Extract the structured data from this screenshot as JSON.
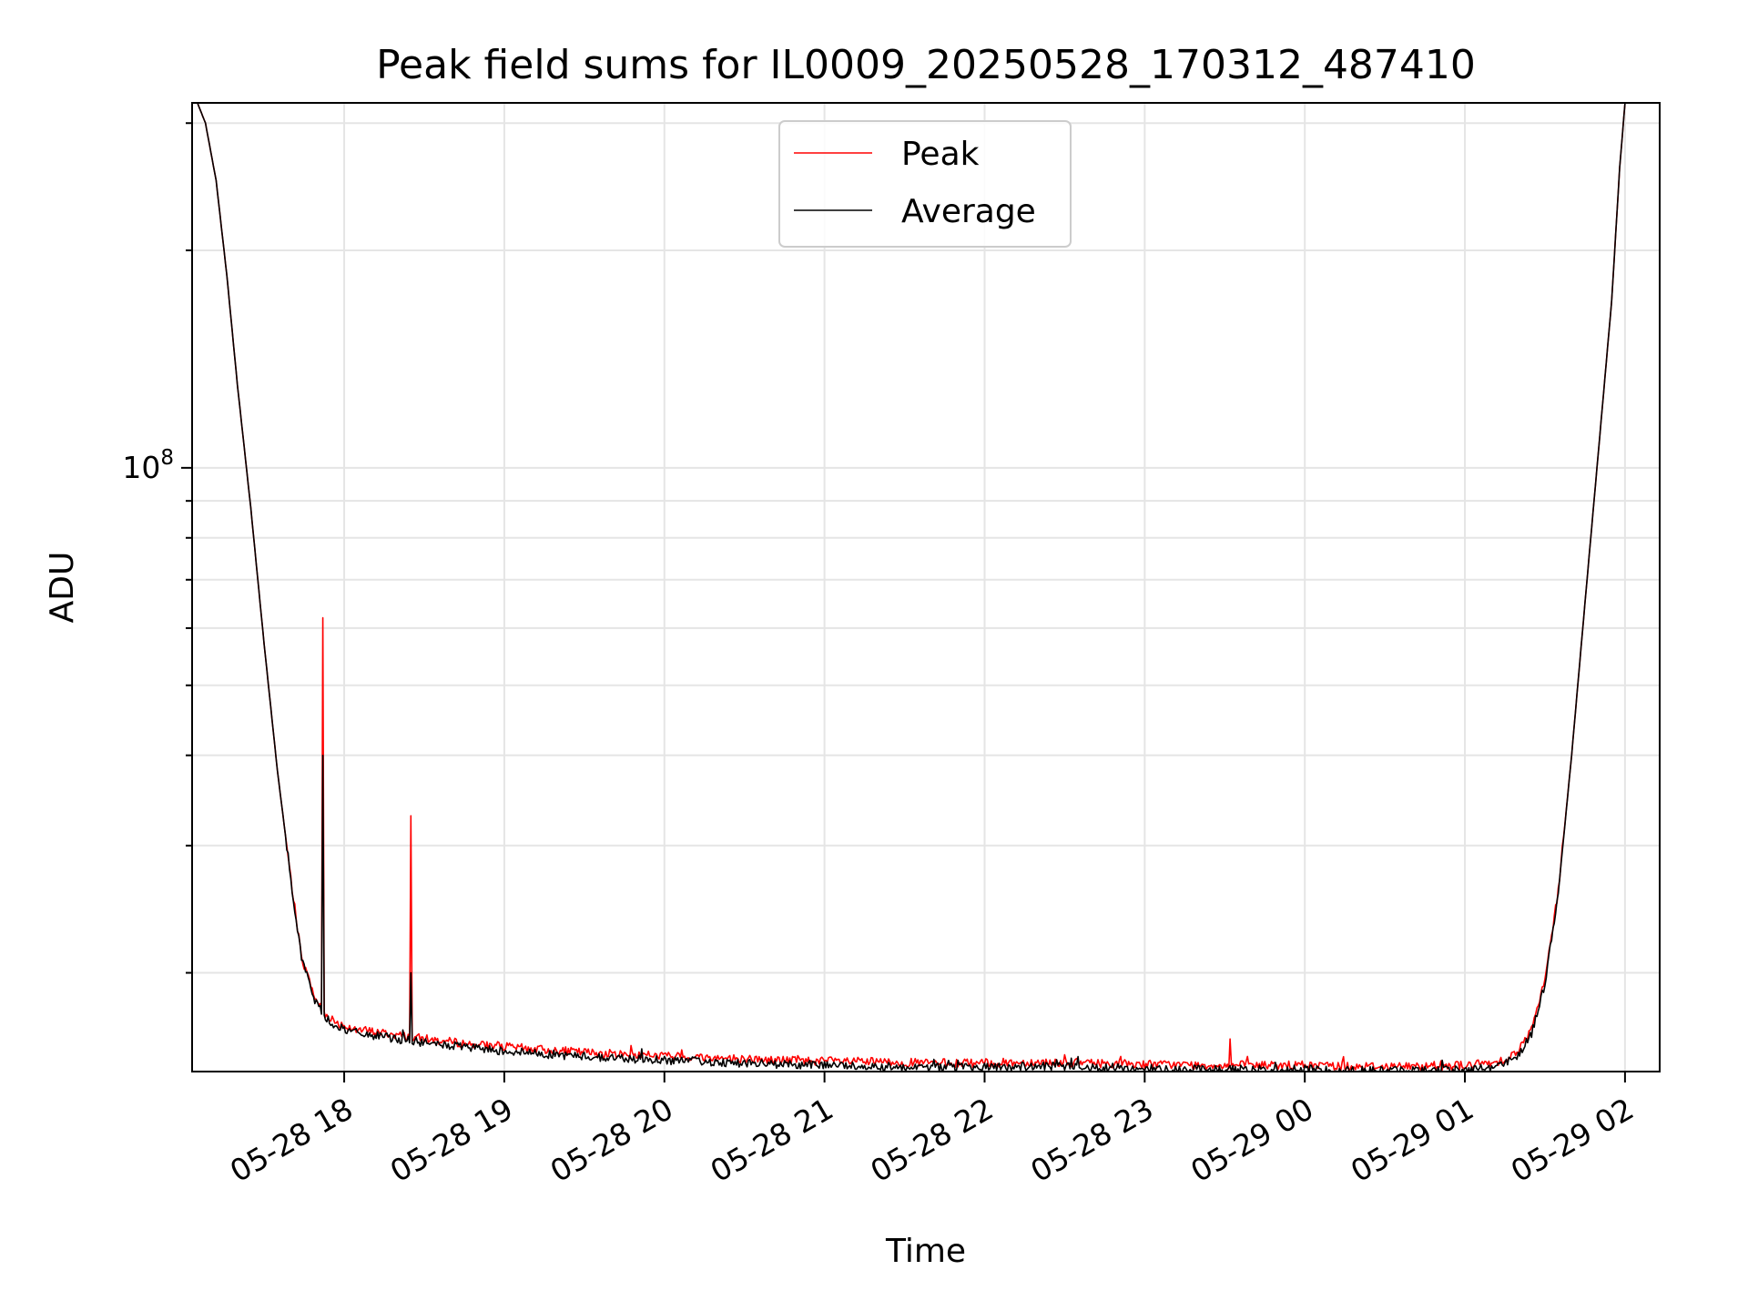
{
  "chart_data": {
    "type": "line",
    "title": "Peak field sums for IL0009_20250528_170312_487410",
    "xlabel": "Time",
    "ylabel": "ADU",
    "yscale": "log",
    "grid": true,
    "legend_position": "upper center",
    "x_range": [
      "2025-05-28 17:03",
      "2025-05-29 02:13"
    ],
    "ylim": [
      14600000,
      320000000
    ],
    "x_tick_labels": [
      "05-28 18",
      "05-28 19",
      "05-28 20",
      "05-28 21",
      "05-28 22",
      "05-28 23",
      "05-29 00",
      "05-29 01",
      "05-29 02"
    ],
    "y_tick_labels": [
      "10^8"
    ],
    "series": [
      {
        "name": "Peak",
        "color": "#ff0000",
        "x": [
          "2025-05-28 17:05",
          "2025-05-28 17:08",
          "2025-05-28 17:12",
          "2025-05-28 17:16",
          "2025-05-28 17:20",
          "2025-05-28 17:25",
          "2025-05-28 17:30",
          "2025-05-28 17:35",
          "2025-05-28 17:40",
          "2025-05-28 17:44",
          "2025-05-28 17:49",
          "2025-05-28 17:52",
          "2025-05-28 17:55",
          "2025-05-28 17:58",
          "2025-05-28 18:00",
          "2025-05-28 18:05",
          "2025-05-28 18:10",
          "2025-05-28 18:20",
          "2025-05-28 18:30",
          "2025-05-28 18:40",
          "2025-05-28 18:50",
          "2025-05-28 19:00",
          "2025-05-28 19:20",
          "2025-05-28 19:40",
          "2025-05-28 20:00",
          "2025-05-28 20:20",
          "2025-05-28 20:40",
          "2025-05-28 21:00",
          "2025-05-28 21:20",
          "2025-05-28 21:40",
          "2025-05-28 22:00",
          "2025-05-28 22:20",
          "2025-05-28 22:40",
          "2025-05-28 23:00",
          "2025-05-28 23:20",
          "2025-05-28 23:40",
          "2025-05-29 00:00",
          "2025-05-29 00:20",
          "2025-05-29 00:40",
          "2025-05-29 01:00",
          "2025-05-29 01:10",
          "2025-05-29 01:15",
          "2025-05-29 01:20",
          "2025-05-29 01:25",
          "2025-05-29 01:30",
          "2025-05-29 01:35",
          "2025-05-29 01:40",
          "2025-05-29 01:45",
          "2025-05-29 01:50",
          "2025-05-29 01:55",
          "2025-05-29 01:58",
          "2025-05-29 02:00"
        ],
        "values": [
          320000000,
          300000000,
          250000000,
          185000000,
          130000000,
          88000000,
          57000000,
          38000000,
          27000000,
          21000000,
          18500000,
          17700000,
          17300000,
          17000000,
          16900000,
          16700000,
          16600000,
          16400000,
          16200000,
          16050000,
          15900000,
          15800000,
          15600000,
          15450000,
          15350000,
          15250000,
          15150000,
          15100000,
          15050000,
          15000000,
          15000000,
          15050000,
          15000000,
          14950000,
          14900000,
          14900000,
          14900000,
          14850000,
          14850000,
          14900000,
          15000000,
          15200000,
          15600000,
          16700000,
          19500000,
          26000000,
          40000000,
          65000000,
          105000000,
          170000000,
          260000000,
          320000000
        ],
        "spikes": [
          {
            "x": "2025-05-28 17:52",
            "y": 62000000
          },
          {
            "x": "2025-05-28 18:25",
            "y": 33000000
          },
          {
            "x": "2025-05-28 23:32",
            "y": 16200000
          }
        ]
      },
      {
        "name": "Average",
        "color": "#000000",
        "x": [
          "2025-05-28 17:05",
          "2025-05-28 17:08",
          "2025-05-28 17:12",
          "2025-05-28 17:16",
          "2025-05-28 17:20",
          "2025-05-28 17:25",
          "2025-05-28 17:30",
          "2025-05-28 17:35",
          "2025-05-28 17:40",
          "2025-05-28 17:44",
          "2025-05-28 17:49",
          "2025-05-28 17:52",
          "2025-05-28 17:55",
          "2025-05-28 17:58",
          "2025-05-28 18:00",
          "2025-05-28 18:05",
          "2025-05-28 18:10",
          "2025-05-28 18:20",
          "2025-05-28 18:30",
          "2025-05-28 18:40",
          "2025-05-28 18:50",
          "2025-05-28 19:00",
          "2025-05-28 19:20",
          "2025-05-28 19:40",
          "2025-05-28 20:00",
          "2025-05-28 20:20",
          "2025-05-28 20:40",
          "2025-05-28 21:00",
          "2025-05-28 21:20",
          "2025-05-28 21:40",
          "2025-05-28 22:00",
          "2025-05-28 22:20",
          "2025-05-28 22:40",
          "2025-05-28 23:00",
          "2025-05-28 23:20",
          "2025-05-28 23:40",
          "2025-05-29 00:00",
          "2025-05-29 00:20",
          "2025-05-29 00:40",
          "2025-05-29 01:00",
          "2025-05-29 01:10",
          "2025-05-29 01:15",
          "2025-05-29 01:20",
          "2025-05-29 01:25",
          "2025-05-29 01:30",
          "2025-05-29 01:35",
          "2025-05-29 01:40",
          "2025-05-29 01:45",
          "2025-05-29 01:50",
          "2025-05-29 01:55",
          "2025-05-29 01:58",
          "2025-05-29 02:00"
        ],
        "values": [
          320000000,
          300000000,
          250000000,
          185000000,
          130000000,
          88000000,
          57000000,
          38000000,
          27000000,
          21000000,
          18300000,
          17500000,
          17100000,
          16800000,
          16700000,
          16500000,
          16400000,
          16200000,
          16000000,
          15850000,
          15700000,
          15600000,
          15400000,
          15250000,
          15150000,
          15050000,
          14950000,
          14900000,
          14850000,
          14800000,
          14800000,
          14850000,
          14800000,
          14750000,
          14700000,
          14700000,
          14700000,
          14650000,
          14650000,
          14700000,
          14800000,
          15000000,
          15400000,
          16500000,
          19300000,
          25800000,
          40000000,
          65000000,
          105000000,
          170000000,
          260000000,
          320000000
        ],
        "spikes": [
          {
            "x": "2025-05-28 17:52",
            "y": 40000000
          },
          {
            "x": "2025-05-28 18:25",
            "y": 20000000
          }
        ]
      }
    ]
  }
}
